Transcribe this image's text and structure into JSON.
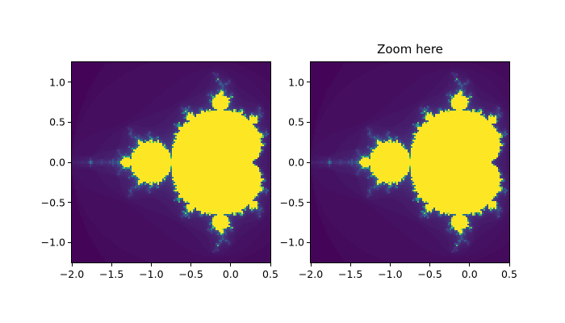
{
  "figure": {
    "background_color": "#ffffff",
    "description": "Two-panel figure of the Mandelbrot set rendered with the viridis colormap"
  },
  "chart_data": [
    {
      "type": "heatmap",
      "subplot": "left",
      "title": "",
      "content": "mandelbrot-set-escape-time-fractal",
      "colormap": "viridis",
      "xlim": [
        -2.0,
        0.5
      ],
      "ylim": [
        -1.25,
        1.25
      ],
      "x_tick_values": [
        -2.0,
        -1.5,
        -1.0,
        -0.5,
        0.0,
        0.5
      ],
      "x_tick_labels": [
        "−2.0",
        "−1.5",
        "−1.0",
        "−0.5",
        "0.0",
        "0.5"
      ],
      "y_tick_values": [
        1.0,
        0.5,
        0.0,
        -0.5,
        -1.0
      ],
      "y_tick_labels": [
        "1.0",
        "0.5",
        "0.0",
        "−0.5",
        "−1.0"
      ],
      "grid": false,
      "legend": false,
      "aspect": "equal",
      "max_iter": 80,
      "grid_resolution": 123,
      "palette": [
        "#440154",
        "#46327e",
        "#365c8d",
        "#277f8e",
        "#1fa187",
        "#4ac16d",
        "#a0da39",
        "#fde725"
      ],
      "background_color": "#440154",
      "interior_color": "#fde725"
    },
    {
      "type": "heatmap",
      "subplot": "right",
      "title": "Zoom here",
      "content": "mandelbrot-set-escape-time-fractal",
      "colormap": "viridis",
      "xlim": [
        -2.0,
        0.5
      ],
      "ylim": [
        -1.25,
        1.25
      ],
      "x_tick_values": [
        -2.0,
        -1.5,
        -1.0,
        -0.5,
        0.0,
        0.5
      ],
      "x_tick_labels": [
        "−2.0",
        "−1.5",
        "−1.0",
        "−0.5",
        "0.0",
        "0.5"
      ],
      "y_tick_values": [
        1.0,
        0.5,
        0.0,
        -0.5,
        -1.0
      ],
      "y_tick_labels": [
        "1.0",
        "0.5",
        "0.0",
        "−0.5",
        "−1.0"
      ],
      "grid": false,
      "legend": false,
      "aspect": "equal",
      "max_iter": 80,
      "grid_resolution": 123,
      "palette": [
        "#440154",
        "#46327e",
        "#365c8d",
        "#277f8e",
        "#1fa187",
        "#4ac16d",
        "#a0da39",
        "#fde725"
      ],
      "background_color": "#440154",
      "interior_color": "#fde725"
    }
  ]
}
